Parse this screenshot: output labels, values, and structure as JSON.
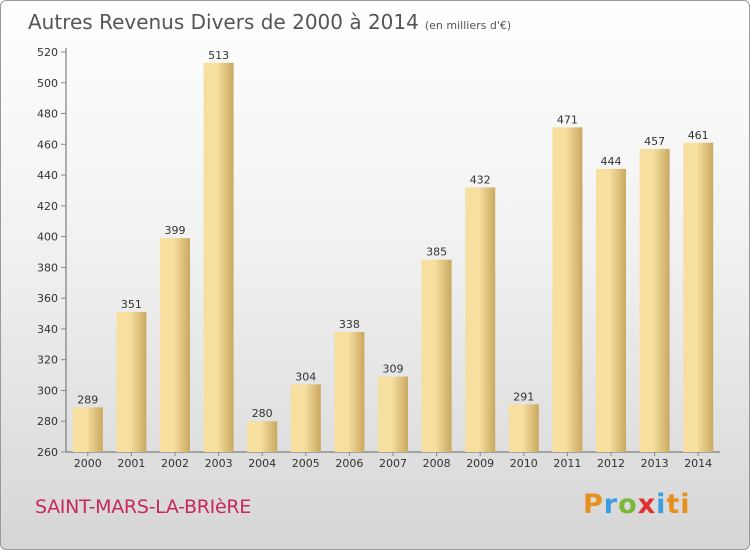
{
  "header": {
    "title": "Autres Revenus Divers de 2000 à 2014",
    "subtitle": "(en milliers d'€)"
  },
  "footer": {
    "location": "SAINT-MARS-LA-BRIèRE",
    "brand_letters": [
      "P",
      "r",
      "o",
      "x",
      "i",
      "ti"
    ]
  },
  "colors": {
    "bar_light": "#f7dfa0",
    "bar_dark": "#c9a95f",
    "axis": "#666666",
    "grid_tick": "#888888",
    "text": "#333333"
  },
  "chart_data": {
    "type": "bar",
    "categories": [
      "2000",
      "2001",
      "2002",
      "2003",
      "2004",
      "2005",
      "2006",
      "2007",
      "2008",
      "2009",
      "2010",
      "2011",
      "2012",
      "2013",
      "2014"
    ],
    "values": [
      289,
      351,
      399,
      513,
      280,
      304,
      338,
      309,
      385,
      432,
      291,
      471,
      444,
      457,
      461
    ],
    "title": "Autres Revenus Divers de 2000 à 2014",
    "ylim": [
      260,
      520
    ],
    "yticks": [
      260,
      280,
      300,
      320,
      340,
      360,
      380,
      400,
      420,
      440,
      460,
      480,
      500,
      520
    ],
    "grid": false,
    "data_labels": true
  }
}
